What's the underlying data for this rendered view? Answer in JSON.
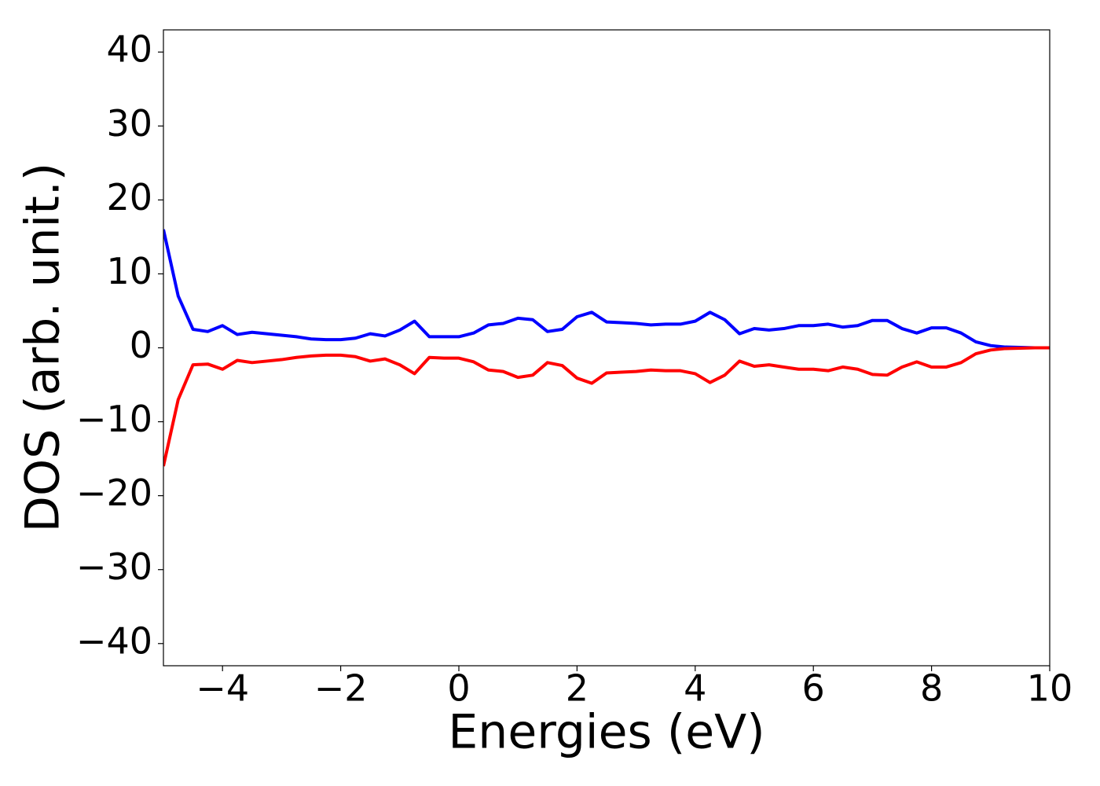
{
  "chart_data": {
    "type": "line",
    "xlabel": "Energies (eV)",
    "ylabel": "DOS (arb. unit.)",
    "x": [
      -5,
      -4.75,
      -4.5,
      -4.25,
      -4,
      -3.75,
      -3.5,
      -3.25,
      -3,
      -2.75,
      -2.5,
      -2.25,
      -2,
      -1.75,
      -1.5,
      -1.25,
      -1,
      -0.75,
      -0.5,
      -0.25,
      0,
      0.25,
      0.5,
      0.75,
      1,
      1.25,
      1.5,
      1.75,
      2,
      2.25,
      2.5,
      2.75,
      3,
      3.25,
      3.5,
      3.75,
      4,
      4.25,
      4.5,
      4.75,
      5,
      5.25,
      5.5,
      5.75,
      6,
      6.25,
      6.5,
      6.75,
      7,
      7.25,
      7.5,
      7.75,
      8,
      8.25,
      8.5,
      8.75,
      9,
      9.25,
      9.5,
      9.75,
      10
    ],
    "series": [
      {
        "color": "#0000ff",
        "values": [
          16,
          7,
          2.5,
          2.2,
          3.0,
          1.8,
          2.1,
          1.9,
          1.7,
          1.5,
          1.2,
          1.1,
          1.1,
          1.3,
          1.9,
          1.6,
          2.4,
          3.6,
          1.5,
          1.5,
          1.5,
          2.0,
          3.1,
          3.3,
          4.0,
          3.8,
          2.2,
          2.5,
          4.2,
          4.8,
          3.5,
          3.4,
          3.3,
          3.1,
          3.2,
          3.2,
          3.6,
          4.8,
          3.8,
          1.9,
          2.6,
          2.4,
          2.6,
          3.0,
          3.0,
          3.2,
          2.8,
          3.0,
          3.7,
          3.7,
          2.6,
          2.0,
          2.7,
          2.7,
          2.0,
          0.8,
          0.3,
          0.1,
          0.05,
          0,
          0
        ]
      },
      {
        "color": "#ff0000",
        "values": [
          -16,
          -7,
          -2.3,
          -2.2,
          -2.9,
          -1.7,
          -2.0,
          -1.8,
          -1.6,
          -1.3,
          -1.1,
          -1.0,
          -1.0,
          -1.2,
          -1.8,
          -1.5,
          -2.3,
          -3.5,
          -1.3,
          -1.4,
          -1.4,
          -1.9,
          -3.0,
          -3.2,
          -4.0,
          -3.7,
          -2.0,
          -2.4,
          -4.1,
          -4.8,
          -3.4,
          -3.3,
          -3.2,
          -3.0,
          -3.1,
          -3.1,
          -3.5,
          -4.7,
          -3.7,
          -1.8,
          -2.5,
          -2.3,
          -2.6,
          -2.9,
          -2.9,
          -3.1,
          -2.6,
          -2.9,
          -3.6,
          -3.7,
          -2.6,
          -1.9,
          -2.6,
          -2.6,
          -2.0,
          -0.8,
          -0.3,
          -0.1,
          -0.05,
          0,
          0
        ]
      }
    ],
    "xlim": [
      -5,
      10
    ],
    "xticks": [
      {
        "value": -4,
        "label": "−4"
      },
      {
        "value": -2,
        "label": "−2"
      },
      0,
      2,
      4,
      6,
      8,
      10
    ],
    "ylim": [
      -43,
      43
    ],
    "yticks": [
      {
        "value": -40,
        "label": "−40"
      },
      {
        "value": -30,
        "label": "−30"
      },
      {
        "value": -20,
        "label": "−20"
      },
      {
        "value": -10,
        "label": "−10"
      },
      0,
      10,
      20,
      30,
      40
    ],
    "grid": false
  }
}
